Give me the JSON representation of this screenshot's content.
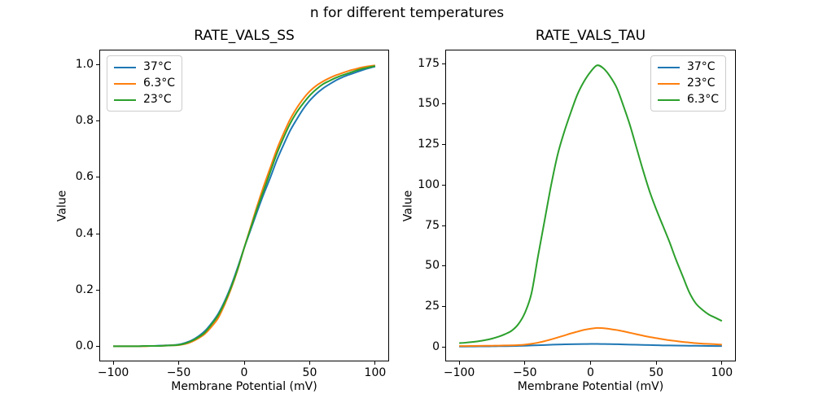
{
  "figure": {
    "title": "n for different temperatures",
    "background_color": "#ffffff",
    "text_color": "#000000",
    "accent_colors": {
      "blue": "#1f77b4",
      "orange": "#ff7f0e",
      "green": "#2ca02c"
    }
  },
  "chart_data": [
    {
      "type": "line",
      "title": "RATE_VALS_SS",
      "xlabel": "Membrane Potential (mV)",
      "ylabel": "Value",
      "grid": false,
      "legend_position": "upper-left",
      "xlim": [
        -110,
        110
      ],
      "ylim": [
        -0.05,
        1.05
      ],
      "xtick_values": [
        -100,
        -50,
        0,
        50,
        100
      ],
      "xtick_labels": [
        "−100",
        "−50",
        "0",
        "50",
        "100"
      ],
      "ytick_values": [
        0.0,
        0.2,
        0.4,
        0.6,
        0.8,
        1.0
      ],
      "ytick_labels": [
        "0.0",
        "0.2",
        "0.4",
        "0.6",
        "0.8",
        "1.0"
      ],
      "x": [
        -100,
        -95,
        -90,
        -85,
        -80,
        -75,
        -70,
        -65,
        -60,
        -55,
        -50,
        -45,
        -40,
        -35,
        -30,
        -25,
        -20,
        -15,
        -10,
        -5,
        0,
        5,
        10,
        15,
        20,
        25,
        30,
        35,
        40,
        45,
        50,
        55,
        60,
        65,
        70,
        75,
        80,
        85,
        90,
        95,
        100
      ],
      "series": [
        {
          "name": "37°C",
          "color": "#1f77b4",
          "values": [
            0.001,
            0.001,
            0.001,
            0.001,
            0.001,
            0.002,
            0.002,
            0.003,
            0.004,
            0.005,
            0.007,
            0.013,
            0.022,
            0.036,
            0.055,
            0.082,
            0.115,
            0.16,
            0.215,
            0.28,
            0.35,
            0.415,
            0.48,
            0.542,
            0.6,
            0.662,
            0.715,
            0.765,
            0.805,
            0.842,
            0.872,
            0.896,
            0.915,
            0.93,
            0.944,
            0.955,
            0.964,
            0.972,
            0.98,
            0.987,
            0.993
          ]
        },
        {
          "name": "6.3°C",
          "color": "#ff7f0e",
          "values": [
            0.001,
            0.001,
            0.001,
            0.001,
            0.001,
            0.001,
            0.002,
            0.002,
            0.003,
            0.004,
            0.005,
            0.009,
            0.017,
            0.029,
            0.045,
            0.07,
            0.1,
            0.148,
            0.205,
            0.272,
            0.35,
            0.425,
            0.5,
            0.57,
            0.635,
            0.7,
            0.755,
            0.805,
            0.845,
            0.878,
            0.905,
            0.925,
            0.94,
            0.952,
            0.962,
            0.97,
            0.978,
            0.984,
            0.99,
            0.994,
            0.997
          ]
        },
        {
          "name": "23°C",
          "color": "#2ca02c",
          "values": [
            0.001,
            0.001,
            0.001,
            0.001,
            0.001,
            0.002,
            0.002,
            0.002,
            0.003,
            0.004,
            0.006,
            0.011,
            0.02,
            0.033,
            0.05,
            0.078,
            0.11,
            0.155,
            0.21,
            0.275,
            0.35,
            0.42,
            0.49,
            0.555,
            0.62,
            0.685,
            0.74,
            0.79,
            0.83,
            0.862,
            0.89,
            0.912,
            0.93,
            0.942,
            0.953,
            0.962,
            0.97,
            0.978,
            0.985,
            0.99,
            0.995
          ]
        }
      ]
    },
    {
      "type": "line",
      "title": "RATE_VALS_TAU",
      "xlabel": "Membrane Potential (mV)",
      "ylabel": "Value",
      "grid": false,
      "legend_position": "upper-right",
      "xlim": [
        -110,
        110
      ],
      "ylim": [
        -8.5,
        183.2
      ],
      "xtick_values": [
        -100,
        -50,
        0,
        50,
        100
      ],
      "xtick_labels": [
        "−100",
        "−50",
        "0",
        "50",
        "100"
      ],
      "ytick_values": [
        0,
        25,
        50,
        75,
        100,
        125,
        150,
        175
      ],
      "ytick_labels": [
        "0",
        "25",
        "50",
        "75",
        "100",
        "125",
        "150",
        "175"
      ],
      "x": [
        -100,
        -95,
        -90,
        -85,
        -80,
        -75,
        -70,
        -65,
        -60,
        -55,
        -50,
        -45,
        -40,
        -35,
        -30,
        -25,
        -20,
        -15,
        -10,
        -5,
        0,
        5,
        10,
        15,
        20,
        25,
        30,
        35,
        40,
        45,
        50,
        55,
        60,
        65,
        70,
        75,
        80,
        85,
        90,
        95,
        100
      ],
      "series": [
        {
          "name": "37°C",
          "color": "#1f77b4",
          "values": [
            0.2,
            0.2,
            0.25,
            0.3,
            0.3,
            0.35,
            0.4,
            0.45,
            0.5,
            0.6,
            0.7,
            0.85,
            1.0,
            1.15,
            1.3,
            1.45,
            1.55,
            1.65,
            1.7,
            1.75,
            1.8,
            1.8,
            1.75,
            1.7,
            1.6,
            1.5,
            1.4,
            1.3,
            1.2,
            1.1,
            1.0,
            0.9,
            0.85,
            0.8,
            0.75,
            0.7,
            0.65,
            0.6,
            0.55,
            0.5,
            0.5
          ]
        },
        {
          "name": "23°C",
          "color": "#ff7f0e",
          "values": [
            0.5,
            0.5,
            0.55,
            0.6,
            0.65,
            0.7,
            0.75,
            0.85,
            0.95,
            1.1,
            1.4,
            1.9,
            2.6,
            3.5,
            4.6,
            5.8,
            7.0,
            8.3,
            9.4,
            10.5,
            11.2,
            11.7,
            11.5,
            11.0,
            10.4,
            9.6,
            8.7,
            7.8,
            6.9,
            6.1,
            5.4,
            4.7,
            4.1,
            3.6,
            3.1,
            2.7,
            2.3,
            2.0,
            1.8,
            1.6,
            1.4
          ]
        },
        {
          "name": "6.3°C",
          "color": "#2ca02c",
          "values": [
            2.3,
            2.6,
            3.0,
            3.5,
            4.2,
            5.1,
            6.3,
            7.9,
            10,
            14,
            21,
            33,
            56,
            78,
            100,
            119,
            133,
            145,
            156,
            164,
            170,
            174,
            172,
            167,
            160,
            149,
            137,
            123,
            109,
            96,
            85,
            75,
            65,
            54,
            44,
            34,
            27,
            23,
            20,
            18,
            16
          ]
        }
      ]
    }
  ]
}
